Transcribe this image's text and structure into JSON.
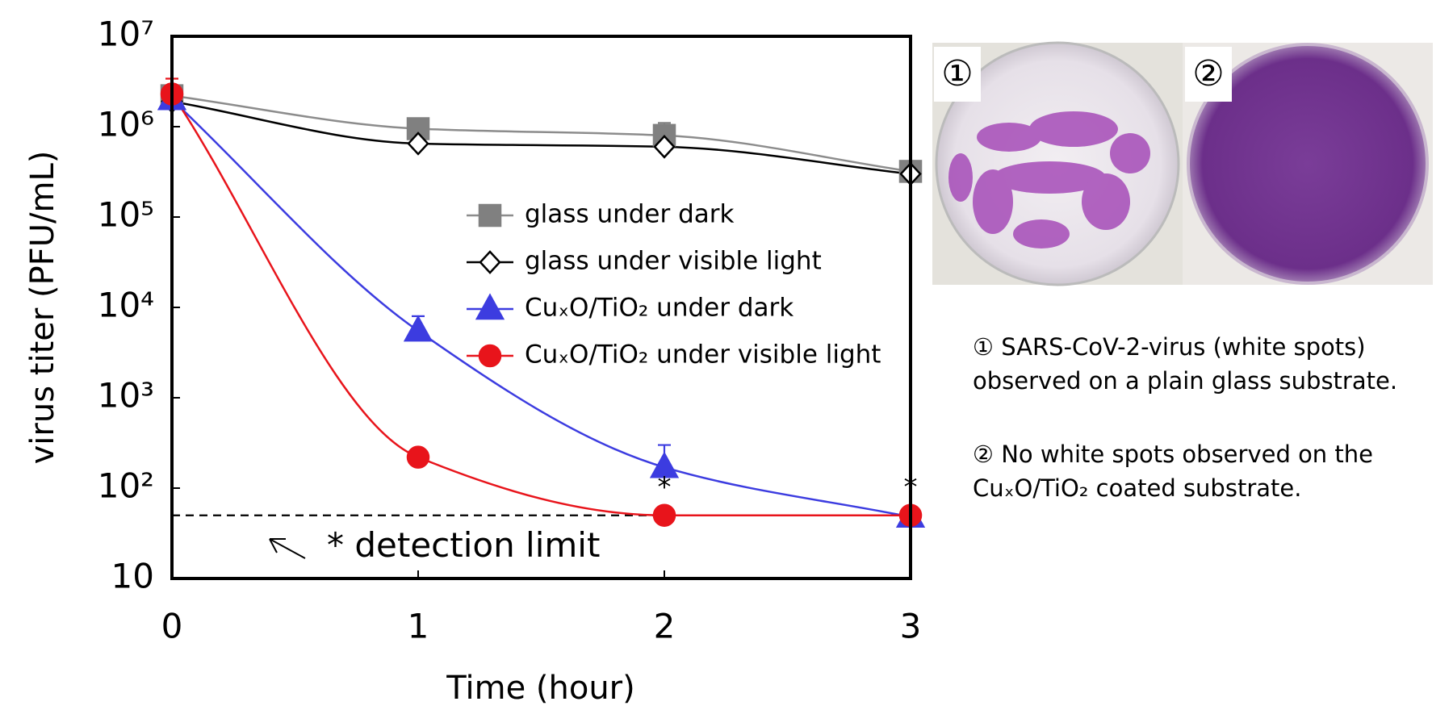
{
  "chart_data": {
    "type": "line",
    "x_label": "Time (hour)",
    "y_label": "virus titer (PFU/mL)",
    "x": [
      0,
      1,
      2,
      3
    ],
    "xlim": [
      0,
      3
    ],
    "xticks": [
      0,
      1,
      2,
      3
    ],
    "ylim": [
      10,
      10000000
    ],
    "yticks": [
      10,
      {
        "value": 100,
        "label": "10²"
      },
      {
        "value": 1000,
        "label": "10³"
      },
      {
        "value": 10000,
        "label": "10⁴"
      },
      {
        "value": 100000,
        "label": "10⁵"
      },
      {
        "value": 1000000,
        "label": "10⁶"
      },
      {
        "value": 10000000,
        "label": "10⁷"
      }
    ],
    "log_y": true,
    "grid": false,
    "series": [
      {
        "name": "glass under dark",
        "color": "#808080",
        "marker": "square",
        "values": [
          2200000,
          950000,
          800000,
          320000
        ],
        "errors": [
          null,
          null,
          300000,
          null
        ]
      },
      {
        "name": "glass under visible light",
        "color": "#000000",
        "marker": "diamond",
        "values": [
          1900000,
          650000,
          600000,
          300000
        ],
        "errors": [
          null,
          null,
          null,
          null
        ]
      },
      {
        "name": "CuₓO/TiO₂ under dark",
        "color": "#3c3ce0",
        "marker": "triangle",
        "values": [
          2000000,
          5500,
          170,
          48
        ],
        "errors": [
          null,
          2500,
          130,
          null
        ]
      },
      {
        "name": "CuₓO/TiO₂ under visible light",
        "color": "#e8141b",
        "marker": "circle",
        "values": [
          2300000,
          220,
          50,
          50
        ],
        "errors": [
          1100000,
          null,
          null,
          null
        ]
      }
    ],
    "detection_limit": 50,
    "detection_limit_label": "* detection limit",
    "significance_markers": [
      {
        "x": 2,
        "text": "*"
      },
      {
        "x": 3,
        "text": "*"
      }
    ]
  },
  "photos": [
    {
      "label": "①"
    },
    {
      "label": "②"
    }
  ],
  "captions": [
    [
      "① SARS-CoV-2-virus (white spots)",
      "observed on a plain glass substrate."
    ],
    [
      "② No white spots observed on the",
      "CuₓO/TiO₂ coated substrate."
    ]
  ]
}
